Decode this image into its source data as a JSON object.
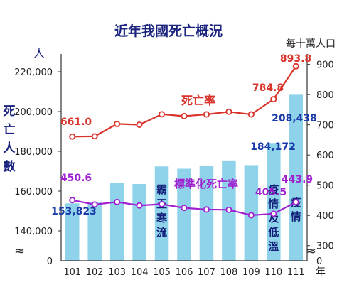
{
  "chart_data": {
    "type": "bar",
    "title": "近年我國死亡概況",
    "left_axis": {
      "unit": "人",
      "label": [
        "死",
        "亡",
        "人",
        "數"
      ],
      "ticks": [
        "220,000",
        "200,000",
        "180,000",
        "160,000",
        "140,000",
        "0"
      ],
      "tick_values": [
        220000,
        200000,
        180000,
        160000,
        140000
      ],
      "ylim": [
        125000,
        227500
      ],
      "break_mark": "≈",
      "color": "#1a237e"
    },
    "right_axis": {
      "unit": "每十萬人口",
      "ticks": [
        "900",
        "800",
        "700",
        "600",
        "500",
        "400",
        "300",
        "0"
      ],
      "tick_values": [
        900,
        800,
        700,
        600,
        500,
        400,
        300
      ],
      "ylim": [
        250,
        925
      ],
      "break_mark": "≈"
    },
    "x_unit": "年",
    "categories": [
      "101",
      "102",
      "103",
      "104",
      "105",
      "106",
      "107",
      "108",
      "109",
      "110",
      "111"
    ],
    "series": [
      {
        "kind": "bar",
        "axis": "left",
        "values": [
          153823,
          154251,
          163929,
          163574,
          172405,
          171242,
          172859,
          175424,
          173067,
          184172,
          208438
        ],
        "color": "#8fd3ea",
        "labels": [
          {
            "index": 0,
            "text": "153,823",
            "color": "#1a3aa8"
          },
          {
            "index": 9,
            "text": "184,172",
            "color": "#1a3aa8"
          },
          {
            "index": 10,
            "text": "208,438",
            "color": "#1a3aa8"
          }
        ]
      },
      {
        "kind": "line",
        "name": "死亡率",
        "axis": "right",
        "values": [
          661.0,
          661.9,
          703.0,
          700.4,
          734.9,
          728.8,
          734.5,
          743.2,
          734.4,
          784.8,
          893.8
        ],
        "color": "#d9342b",
        "labels": [
          {
            "index": 0,
            "text": "661.0"
          },
          {
            "index": 9,
            "text": "784.8"
          },
          {
            "index": 10,
            "text": "893.8"
          }
        ]
      },
      {
        "kind": "line",
        "name": "標準化死亡率",
        "axis": "right",
        "values": [
          450.6,
          436.2,
          444.4,
          432.9,
          437.3,
          424.9,
          419.5,
          418.6,
          400.7,
          405.5,
          443.9
        ],
        "color": "#a020d0",
        "labels": [
          {
            "index": 0,
            "text": "450.6"
          },
          {
            "index": 9,
            "text": "405.5"
          },
          {
            "index": 10,
            "text": "443.9"
          }
        ]
      }
    ],
    "bar_annotations": [
      {
        "index": 4,
        "text": "霸王寒流"
      },
      {
        "index": 9,
        "text": "疫情及低溫"
      },
      {
        "index": 10,
        "text": "疫情"
      }
    ],
    "grid": false
  }
}
